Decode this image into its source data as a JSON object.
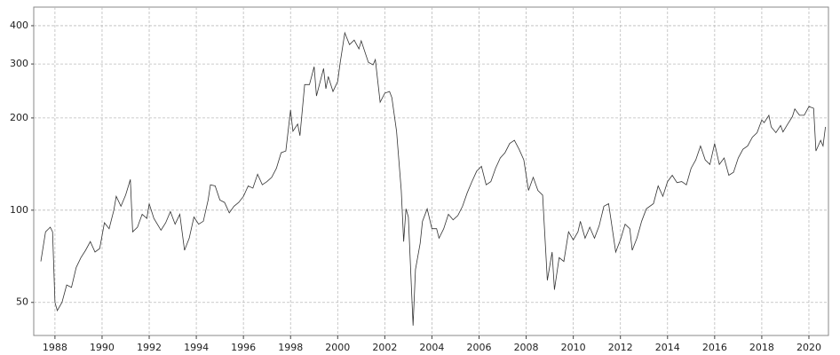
{
  "chart_data": {
    "type": "line",
    "log_scale": true,
    "grid": true,
    "xlim": [
      1987.1,
      2020.83
    ],
    "ylim": [
      39,
      460
    ],
    "xticks": [
      1988,
      1990,
      1992,
      1994,
      1996,
      1998,
      2000,
      2002,
      2004,
      2006,
      2008,
      2010,
      2012,
      2014,
      2016,
      2018,
      2020
    ],
    "yticks": [
      50,
      100,
      200,
      300,
      400
    ],
    "x": [
      1987.4,
      1987.6,
      1987.8,
      1987.9,
      1988.0,
      1988.1,
      1988.3,
      1988.5,
      1988.7,
      1988.9,
      1989.1,
      1989.3,
      1989.5,
      1989.7,
      1989.9,
      1990.1,
      1990.3,
      1990.5,
      1990.6,
      1990.8,
      1991.0,
      1991.2,
      1991.3,
      1991.5,
      1991.7,
      1991.9,
      1992.0,
      1992.2,
      1992.5,
      1992.7,
      1992.9,
      1993.1,
      1993.3,
      1993.5,
      1993.7,
      1993.9,
      1994.1,
      1994.3,
      1994.5,
      1994.6,
      1994.8,
      1995.0,
      1995.2,
      1995.4,
      1995.6,
      1995.8,
      1996.0,
      1996.2,
      1996.4,
      1996.6,
      1996.8,
      1997.0,
      1997.2,
      1997.4,
      1997.6,
      1997.8,
      1998.0,
      1998.1,
      1998.3,
      1998.4,
      1998.6,
      1998.8,
      1999.0,
      1999.1,
      1999.4,
      1999.5,
      1999.6,
      1999.8,
      2000.0,
      2000.1,
      2000.3,
      2000.5,
      2000.7,
      2000.9,
      2001.0,
      2001.3,
      2001.5,
      2001.6,
      2001.8,
      2002.0,
      2002.2,
      2002.3,
      2002.5,
      2002.7,
      2002.8,
      2002.9,
      2003.0,
      2003.2,
      2003.3,
      2003.5,
      2003.6,
      2003.8,
      2004.0,
      2004.2,
      2004.3,
      2004.5,
      2004.7,
      2004.9,
      2005.1,
      2005.3,
      2005.5,
      2005.7,
      2005.9,
      2006.1,
      2006.3,
      2006.5,
      2006.7,
      2006.9,
      2007.1,
      2007.3,
      2007.5,
      2007.7,
      2007.9,
      2008.1,
      2008.3,
      2008.5,
      2008.7,
      2008.9,
      2009.1,
      2009.2,
      2009.4,
      2009.6,
      2009.8,
      2010.0,
      2010.2,
      2010.3,
      2010.5,
      2010.7,
      2010.9,
      2011.1,
      2011.3,
      2011.5,
      2011.6,
      2011.8,
      2012.0,
      2012.2,
      2012.4,
      2012.5,
      2012.7,
      2012.9,
      2013.1,
      2013.4,
      2013.6,
      2013.8,
      2014.0,
      2014.2,
      2014.4,
      2014.6,
      2014.8,
      2015.0,
      2015.2,
      2015.4,
      2015.6,
      2015.8,
      2016.0,
      2016.2,
      2016.4,
      2016.6,
      2016.8,
      2017.0,
      2017.2,
      2017.4,
      2017.6,
      2017.8,
      2018.0,
      2018.1,
      2018.3,
      2018.4,
      2018.6,
      2018.8,
      2018.9,
      2019.1,
      2019.3,
      2019.4,
      2019.6,
      2019.8,
      2020.0,
      2020.2,
      2020.3,
      2020.5,
      2020.6,
      2020.7
    ],
    "series": [
      {
        "color": "#333333",
        "values": [
          68,
          85,
          88,
          85,
          50,
          47,
          50,
          57,
          56,
          65,
          70,
          74,
          79,
          73,
          75,
          91,
          87,
          100,
          111,
          103,
          112,
          126,
          85,
          88,
          97,
          94,
          105,
          94,
          86,
          91,
          99,
          90,
          97,
          74,
          81,
          95,
          90,
          92,
          108,
          121,
          120,
          108,
          106,
          98,
          103,
          106,
          111,
          120,
          118,
          131,
          121,
          124,
          128,
          137,
          154,
          156,
          212,
          181,
          191,
          175,
          257,
          257,
          294,
          236,
          290,
          249,
          273,
          244,
          263,
          300,
          379,
          347,
          359,
          336,
          357,
          304,
          298,
          310,
          225,
          241,
          244,
          233,
          181,
          116,
          79,
          101,
          95,
          42,
          64,
          78,
          92,
          101,
          87,
          87,
          81,
          87,
          97,
          93,
          96,
          103,
          114,
          124,
          134,
          139,
          121,
          124,
          137,
          148,
          154,
          165,
          169,
          158,
          146,
          116,
          128,
          116,
          112,
          59,
          73,
          55,
          70,
          68,
          85,
          80,
          85,
          92,
          81,
          88,
          81,
          89,
          103,
          105,
          93,
          73,
          80,
          90,
          87,
          74,
          81,
          92,
          101,
          105,
          120,
          111,
          124,
          130,
          123,
          124,
          121,
          137,
          146,
          162,
          146,
          141,
          165,
          141,
          148,
          130,
          133,
          148,
          158,
          162,
          173,
          179,
          197,
          193,
          204,
          187,
          179,
          189,
          180,
          191,
          202,
          214,
          204,
          204,
          218,
          215,
          156,
          169,
          162,
          187
        ]
      }
    ]
  }
}
